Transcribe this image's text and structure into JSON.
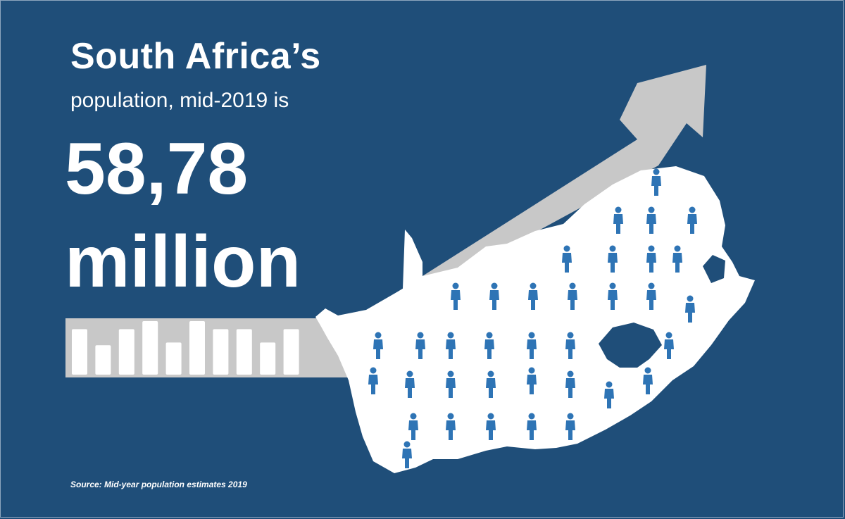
{
  "infographic": {
    "title": "South Africa’s",
    "subtitle": "population, mid-2019 is",
    "value_number": "58,78",
    "value_unit": "million",
    "source": "Source: Mid-year population estimates 2019"
  },
  "colors": {
    "background": "#1f4e79",
    "arrow": "#c8c8c8",
    "map": "#ffffff",
    "lesotho": "#1f4e79",
    "people_icons": "#2e74b5"
  },
  "bar_icon": {
    "relative_heights": [
      0.85,
      0.55,
      0.85,
      1.0,
      0.6,
      1.0,
      0.85,
      0.85,
      0.6,
      0.85
    ]
  },
  "icons": {
    "arrow": "growth-arrow-icon",
    "map": "south-africa-map-icon",
    "people": [
      "person-walking-icon",
      "person-wheelchair-icon",
      "person-hiker-icon",
      "person-standing-icon",
      "person-child-icon",
      "person-graduate-icon",
      "person-cane-icon",
      "person-wheelbarrow-icon",
      "person-pregnant-icon",
      "person-shopping-icon"
    ]
  }
}
